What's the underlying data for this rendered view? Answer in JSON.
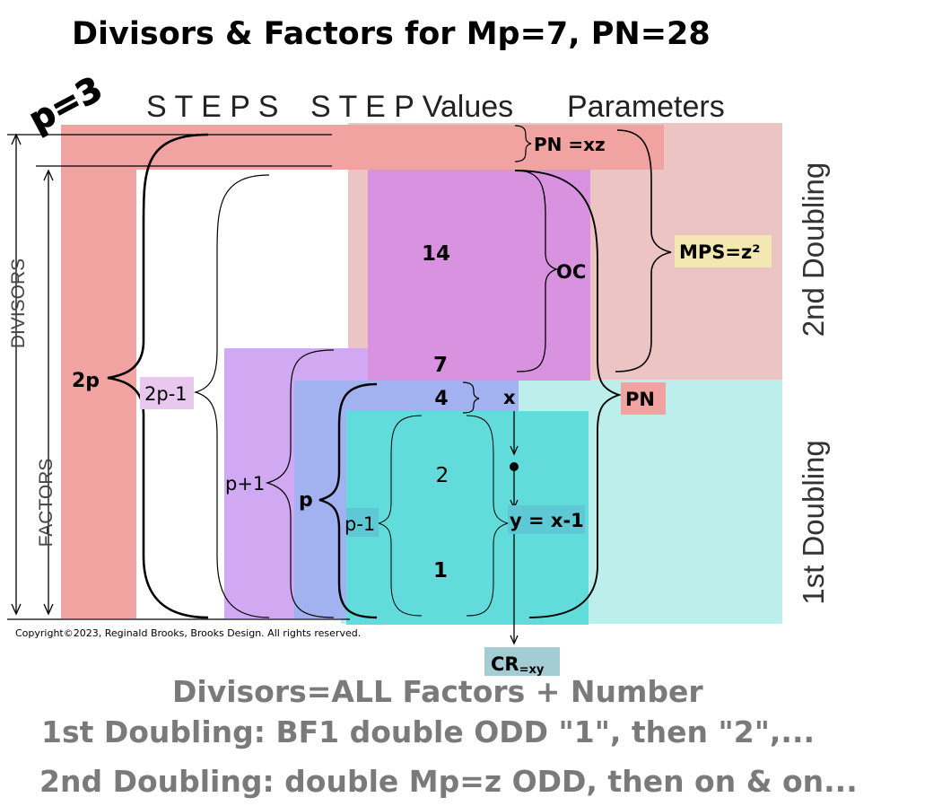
{
  "title": "Divisors & Factors for Mp=7, PN=28",
  "p_label": "p=3",
  "headers": {
    "steps": "S T E P S",
    "step_values": "S T E P  Values",
    "parameters": "Parameters"
  },
  "side_labels": {
    "divisors": "DIVISORS",
    "factors": "FACTORS"
  },
  "doublings": {
    "second": "2nd Doubling",
    "first": "1st Doubling"
  },
  "steps": {
    "two_p": "2p",
    "two_p_minus_1": "2p-1",
    "p_plus_1": "p+1",
    "p": "p",
    "p_minus_1": "p-1"
  },
  "values": {
    "v14": "14",
    "v7": "7",
    "v4": "4",
    "v2": "2",
    "v1": "1"
  },
  "params": {
    "pn_xz": "PN =xz",
    "oc": "OC",
    "mps": "MPS=z²",
    "pn": "PN",
    "x": "x",
    "y_eq": "y = x-1",
    "cr_main": "CR",
    "cr_sub": "=xy"
  },
  "copyright": "Copyright©2023, Reginald Brooks, Brooks Design. All rights reserved.",
  "footer": {
    "line1": "Divisors=ALL Factors + Number",
    "line2": "1st Doubling: BF1 double ODD \"1\", then \"2\",...",
    "line3": "2nd Doubling: double Mp=z ODD, then on & on..."
  },
  "colors": {
    "red_band": "#f0a3a1",
    "pink_bg": "#ecc4c3",
    "magenta": "#d992e0",
    "lavender": "#d1a9f3",
    "blue": "#a2b1ef",
    "teal": "#62dcdb",
    "light_teal": "#bcefec",
    "cr_box": "#a4ccd3",
    "mps_box": "#f3e8b2",
    "footer_text": "#7a7a7a"
  }
}
